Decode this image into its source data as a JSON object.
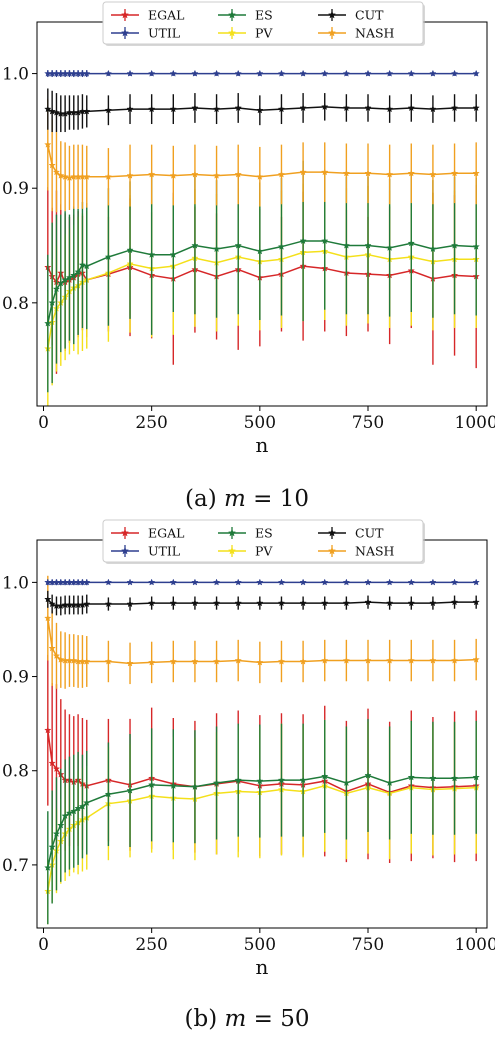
{
  "chart_data": [
    {
      "type": "line",
      "caption_prefix": "(a) ",
      "caption_math": "m",
      "caption_suffix": " = 10",
      "xlabel": "n",
      "ylabel": "",
      "xlim": [
        -15,
        1025
      ],
      "ylim": [
        0.71,
        1.045
      ],
      "xticks": [
        0,
        250,
        500,
        750,
        1000
      ],
      "yticks": [
        0.8,
        0.9,
        1.0
      ],
      "ytick_labels": [
        "0.8",
        "0.9",
        "1.0"
      ],
      "grid": false,
      "legend": "top-center",
      "x": [
        10,
        20,
        30,
        40,
        50,
        60,
        70,
        80,
        90,
        100,
        150,
        200,
        250,
        300,
        350,
        400,
        450,
        500,
        550,
        600,
        650,
        700,
        750,
        800,
        850,
        900,
        950,
        1000
      ],
      "series": [
        {
          "name": "EGAL",
          "color": "#d62728",
          "values": [
            0.831,
            0.823,
            0.818,
            0.826,
            0.818,
            0.82,
            0.822,
            0.825,
            0.826,
            0.82,
            0.825,
            0.831,
            0.824,
            0.821,
            0.829,
            0.823,
            0.829,
            0.822,
            0.825,
            0.832,
            0.83,
            0.826,
            0.825,
            0.824,
            0.828,
            0.821,
            0.824,
            0.823
          ],
          "err": [
            0.07,
            0.06,
            0.08,
            0.06,
            0.06,
            0.055,
            0.055,
            0.055,
            0.05,
            0.05,
            0.05,
            0.06,
            0.055,
            0.075,
            0.055,
            0.055,
            0.07,
            0.06,
            0.05,
            0.065,
            0.055,
            0.055,
            0.05,
            0.06,
            0.05,
            0.075,
            0.07,
            0.08
          ]
        },
        {
          "name": "UTIL",
          "color": "#2e3f8f",
          "values": [
            1.0,
            1.0,
            1.0,
            1.0,
            1.0,
            1.0,
            1.0,
            1.0,
            1.0,
            1.0,
            1.0,
            1.0,
            1.0,
            1.0,
            1.0,
            1.0,
            1.0,
            1.0,
            1.0,
            1.0,
            1.0,
            1.0,
            1.0,
            1.0,
            1.0,
            1.0,
            1.0,
            1.0
          ],
          "err": [
            0.003,
            0.003,
            0.003,
            0.003,
            0.003,
            0.003,
            0.003,
            0.003,
            0.003,
            0.003,
            0.002,
            0.002,
            0.002,
            0.002,
            0.002,
            0.002,
            0.002,
            0.002,
            0.002,
            0.002,
            0.002,
            0.002,
            0.002,
            0.002,
            0.002,
            0.002,
            0.002,
            0.002
          ]
        },
        {
          "name": "ES",
          "color": "#1f7a3a",
          "values": [
            0.782,
            0.8,
            0.812,
            0.817,
            0.82,
            0.822,
            0.824,
            0.827,
            0.833,
            0.832,
            0.84,
            0.846,
            0.842,
            0.842,
            0.85,
            0.847,
            0.85,
            0.845,
            0.849,
            0.854,
            0.854,
            0.85,
            0.85,
            0.848,
            0.852,
            0.847,
            0.85,
            0.849
          ],
          "err": [
            0.06,
            0.07,
            0.065,
            0.06,
            0.06,
            0.055,
            0.06,
            0.055,
            0.055,
            0.055,
            0.06,
            0.06,
            0.07,
            0.05,
            0.06,
            0.06,
            0.06,
            0.06,
            0.06,
            0.07,
            0.06,
            0.06,
            0.06,
            0.06,
            0.06,
            0.06,
            0.06,
            0.06
          ]
        },
        {
          "name": "PV",
          "color": "#f4e01a",
          "values": [
            0.76,
            0.783,
            0.795,
            0.8,
            0.805,
            0.81,
            0.813,
            0.815,
            0.818,
            0.82,
            0.826,
            0.834,
            0.83,
            0.832,
            0.839,
            0.835,
            0.84,
            0.836,
            0.838,
            0.844,
            0.845,
            0.84,
            0.842,
            0.838,
            0.84,
            0.836,
            0.838,
            0.838
          ],
          "err": [
            0.05,
            0.055,
            0.055,
            0.055,
            0.055,
            0.055,
            0.055,
            0.06,
            0.06,
            0.06,
            0.06,
            0.06,
            0.06,
            0.06,
            0.06,
            0.06,
            0.06,
            0.06,
            0.06,
            0.06,
            0.06,
            0.06,
            0.06,
            0.06,
            0.06,
            0.06,
            0.06,
            0.06
          ]
        },
        {
          "name": "CUT",
          "color": "#111111",
          "values": [
            0.969,
            0.967,
            0.966,
            0.965,
            0.965,
            0.966,
            0.966,
            0.966,
            0.967,
            0.967,
            0.968,
            0.969,
            0.969,
            0.969,
            0.97,
            0.969,
            0.97,
            0.968,
            0.969,
            0.97,
            0.971,
            0.97,
            0.97,
            0.969,
            0.97,
            0.969,
            0.97,
            0.97
          ],
          "err": [
            0.018,
            0.018,
            0.017,
            0.016,
            0.016,
            0.015,
            0.015,
            0.015,
            0.015,
            0.014,
            0.013,
            0.013,
            0.013,
            0.013,
            0.013,
            0.013,
            0.013,
            0.013,
            0.013,
            0.013,
            0.012,
            0.012,
            0.012,
            0.012,
            0.012,
            0.012,
            0.012,
            0.012
          ]
        },
        {
          "name": "NASH",
          "color": "#f0a020",
          "values": [
            0.938,
            0.92,
            0.914,
            0.911,
            0.91,
            0.909,
            0.91,
            0.91,
            0.91,
            0.91,
            0.91,
            0.911,
            0.912,
            0.911,
            0.912,
            0.911,
            0.912,
            0.91,
            0.912,
            0.914,
            0.914,
            0.913,
            0.913,
            0.912,
            0.913,
            0.912,
            0.913,
            0.913
          ],
          "err": [
            0.04,
            0.04,
            0.035,
            0.03,
            0.03,
            0.028,
            0.028,
            0.028,
            0.028,
            0.027,
            0.025,
            0.027,
            0.026,
            0.026,
            0.026,
            0.026,
            0.026,
            0.026,
            0.026,
            0.026,
            0.026,
            0.026,
            0.026,
            0.026,
            0.026,
            0.026,
            0.026,
            0.027
          ]
        }
      ]
    },
    {
      "type": "line",
      "caption_prefix": "(b) ",
      "caption_math": "m",
      "caption_suffix": " = 50",
      "xlabel": "n",
      "ylabel": "",
      "xlim": [
        -15,
        1025
      ],
      "ylim": [
        0.633,
        1.045
      ],
      "xticks": [
        0,
        250,
        500,
        750,
        1000
      ],
      "yticks": [
        0.7,
        0.8,
        0.9,
        1.0
      ],
      "ytick_labels": [
        "0.7",
        "0.8",
        "0.9",
        "1.0"
      ],
      "grid": false,
      "legend": "top-center",
      "x": [
        10,
        20,
        30,
        40,
        50,
        60,
        70,
        80,
        90,
        100,
        150,
        200,
        250,
        300,
        350,
        400,
        450,
        500,
        550,
        600,
        650,
        700,
        750,
        800,
        850,
        900,
        950,
        1000
      ],
      "series": [
        {
          "name": "EGAL",
          "color": "#d62728",
          "values": [
            0.843,
            0.808,
            0.802,
            0.796,
            0.79,
            0.79,
            0.788,
            0.79,
            0.786,
            0.784,
            0.79,
            0.785,
            0.792,
            0.786,
            0.783,
            0.786,
            0.789,
            0.784,
            0.786,
            0.785,
            0.789,
            0.778,
            0.786,
            0.777,
            0.784,
            0.782,
            0.783,
            0.784
          ],
          "err": [
            0.08,
            0.085,
            0.09,
            0.08,
            0.075,
            0.07,
            0.07,
            0.07,
            0.07,
            0.07,
            0.065,
            0.07,
            0.075,
            0.07,
            0.07,
            0.075,
            0.075,
            0.075,
            0.075,
            0.075,
            0.08,
            0.075,
            0.08,
            0.075,
            0.08,
            0.075,
            0.08,
            0.08
          ]
        },
        {
          "name": "UTIL",
          "color": "#2e3f8f",
          "values": [
            1.0,
            1.0,
            1.0,
            1.0,
            1.0,
            1.0,
            1.0,
            1.0,
            1.0,
            1.0,
            1.0,
            1.0,
            1.0,
            1.0,
            1.0,
            1.0,
            1.0,
            1.0,
            1.0,
            1.0,
            1.0,
            1.0,
            1.0,
            1.0,
            1.0,
            1.0,
            1.0,
            1.0
          ],
          "err": [
            0.003,
            0.003,
            0.003,
            0.003,
            0.003,
            0.003,
            0.003,
            0.003,
            0.003,
            0.003,
            0.002,
            0.002,
            0.002,
            0.002,
            0.002,
            0.002,
            0.002,
            0.002,
            0.002,
            0.002,
            0.002,
            0.002,
            0.002,
            0.002,
            0.002,
            0.002,
            0.002,
            0.002
          ]
        },
        {
          "name": "ES",
          "color": "#1f7a3a",
          "values": [
            0.697,
            0.719,
            0.733,
            0.742,
            0.752,
            0.755,
            0.757,
            0.76,
            0.762,
            0.766,
            0.775,
            0.779,
            0.785,
            0.784,
            0.783,
            0.787,
            0.79,
            0.789,
            0.79,
            0.79,
            0.794,
            0.787,
            0.795,
            0.787,
            0.793,
            0.792,
            0.792,
            0.793
          ],
          "err": [
            0.06,
            0.06,
            0.06,
            0.06,
            0.06,
            0.06,
            0.06,
            0.06,
            0.055,
            0.055,
            0.055,
            0.06,
            0.06,
            0.06,
            0.06,
            0.06,
            0.06,
            0.06,
            0.06,
            0.06,
            0.06,
            0.06,
            0.06,
            0.06,
            0.06,
            0.06,
            0.06,
            0.06
          ]
        },
        {
          "name": "PV",
          "color": "#f4e01a",
          "values": [
            0.672,
            0.7,
            0.715,
            0.725,
            0.733,
            0.738,
            0.742,
            0.745,
            0.748,
            0.75,
            0.765,
            0.768,
            0.773,
            0.771,
            0.77,
            0.776,
            0.778,
            0.777,
            0.78,
            0.778,
            0.784,
            0.776,
            0.782,
            0.776,
            0.782,
            0.78,
            0.781,
            0.782
          ],
          "err": [
            0.035,
            0.04,
            0.045,
            0.045,
            0.05,
            0.05,
            0.05,
            0.055,
            0.055,
            0.055,
            0.06,
            0.06,
            0.06,
            0.065,
            0.065,
            0.065,
            0.07,
            0.07,
            0.07,
            0.07,
            0.07,
            0.07,
            0.07,
            0.07,
            0.07,
            0.07,
            0.07,
            0.07
          ]
        },
        {
          "name": "CUT",
          "color": "#111111",
          "values": [
            0.982,
            0.977,
            0.975,
            0.975,
            0.976,
            0.976,
            0.976,
            0.976,
            0.976,
            0.977,
            0.977,
            0.977,
            0.978,
            0.978,
            0.978,
            0.978,
            0.978,
            0.978,
            0.978,
            0.978,
            0.978,
            0.978,
            0.979,
            0.978,
            0.978,
            0.978,
            0.979,
            0.979
          ],
          "err": [
            0.009,
            0.01,
            0.01,
            0.01,
            0.01,
            0.01,
            0.01,
            0.01,
            0.01,
            0.01,
            0.007,
            0.007,
            0.007,
            0.007,
            0.007,
            0.007,
            0.007,
            0.007,
            0.007,
            0.007,
            0.007,
            0.007,
            0.007,
            0.007,
            0.007,
            0.007,
            0.007,
            0.007
          ]
        },
        {
          "name": "NASH",
          "color": "#f0a020",
          "values": [
            0.962,
            0.93,
            0.922,
            0.918,
            0.917,
            0.917,
            0.917,
            0.916,
            0.916,
            0.916,
            0.916,
            0.914,
            0.915,
            0.916,
            0.916,
            0.916,
            0.917,
            0.915,
            0.916,
            0.916,
            0.917,
            0.917,
            0.917,
            0.917,
            0.917,
            0.917,
            0.917,
            0.918
          ],
          "err": [
            0.045,
            0.04,
            0.035,
            0.03,
            0.03,
            0.028,
            0.028,
            0.028,
            0.028,
            0.027,
            0.022,
            0.022,
            0.022,
            0.022,
            0.022,
            0.022,
            0.022,
            0.022,
            0.022,
            0.022,
            0.022,
            0.022,
            0.022,
            0.022,
            0.022,
            0.022,
            0.022,
            0.022
          ]
        }
      ]
    }
  ]
}
